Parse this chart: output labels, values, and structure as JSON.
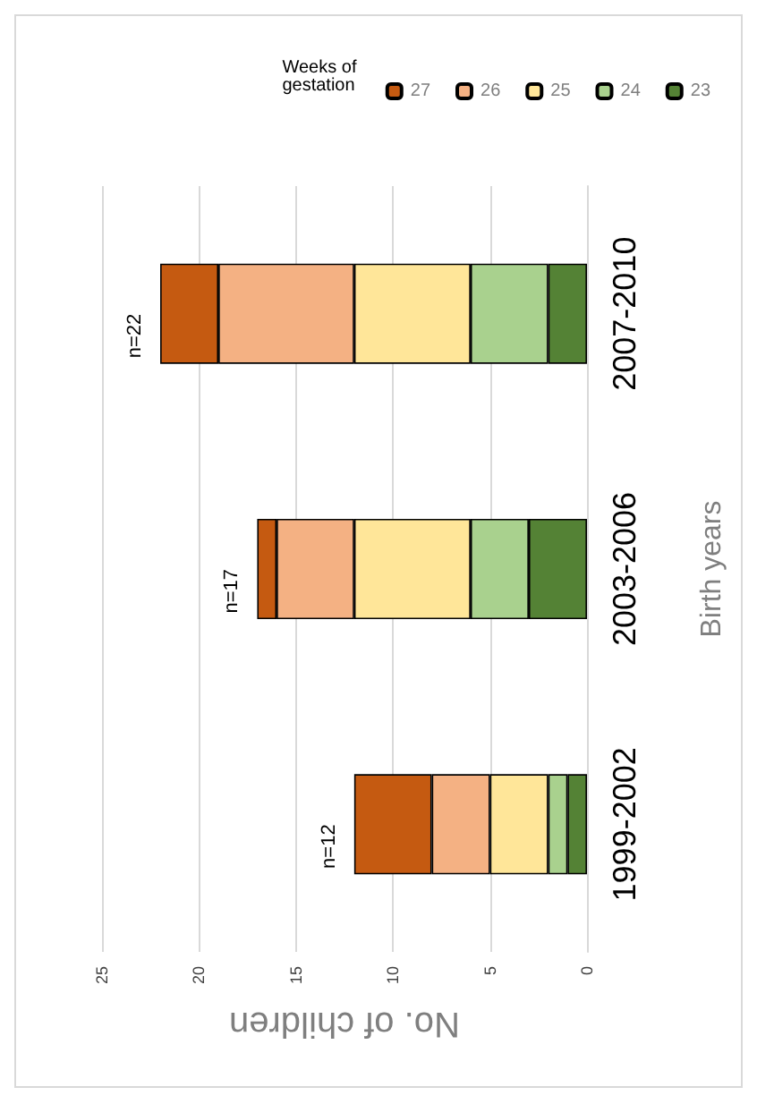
{
  "chart_data": {
    "type": "bar",
    "orientation": "horizontal",
    "stacked": true,
    "categories": [
      "2007-2010",
      "2003-2006",
      "1999-2002"
    ],
    "series": [
      {
        "name": "23",
        "color": "#548235",
        "values": [
          2,
          3,
          1
        ]
      },
      {
        "name": "24",
        "color": "#a9d18e",
        "values": [
          4,
          3,
          1
        ]
      },
      {
        "name": "25",
        "color": "#ffe699",
        "values": [
          6,
          6,
          3
        ]
      },
      {
        "name": "26",
        "color": "#f4b183",
        "values": [
          7,
          4,
          3
        ]
      },
      {
        "name": "27",
        "color": "#c55a11",
        "values": [
          3,
          1,
          4
        ]
      }
    ],
    "totals": [
      "n=22",
      "n=17",
      "n=12"
    ],
    "xlabel": "No. of children",
    "ylabel": "Birth years",
    "legend_title": "Weeks of gestation",
    "xlim": [
      25,
      0
    ],
    "xticks": [
      0,
      5,
      10,
      15,
      20,
      25
    ],
    "grid": "x",
    "legend": "top right"
  }
}
